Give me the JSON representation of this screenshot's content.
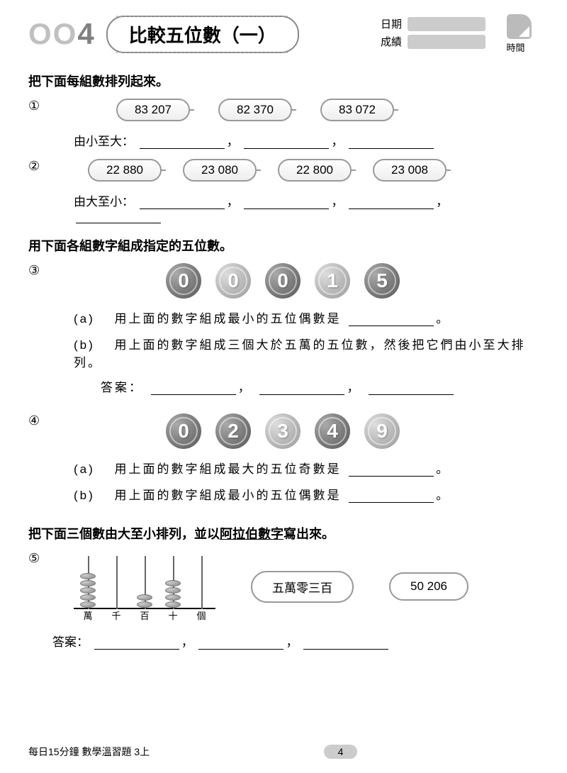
{
  "header": {
    "page_num_prefix": "OO",
    "page_num_last": "4",
    "title": "比較五位數（一）",
    "date_label": "日期",
    "score_label": "成績",
    "time_label": "時間"
  },
  "section1": {
    "instruction": "把下面每組數排列起來。",
    "q1": {
      "num": "①",
      "pills": [
        "83 207",
        "82 370",
        "83 072"
      ],
      "label": "由小至大："
    },
    "q2": {
      "num": "②",
      "pills": [
        "22 880",
        "23 080",
        "22 800",
        "23 008"
      ],
      "label": "由大至小："
    }
  },
  "section2": {
    "instruction": "用下面各組數字組成指定的五位數。",
    "q3": {
      "num": "③",
      "coins": [
        {
          "digit": "0",
          "shade": "dark"
        },
        {
          "digit": "0",
          "shade": "light"
        },
        {
          "digit": "0",
          "shade": "dark"
        },
        {
          "digit": "1",
          "shade": "light"
        },
        {
          "digit": "5",
          "shade": "dark"
        }
      ],
      "a_label": "(a)",
      "a_text": "用上面的數字組成最小的五位偶數是",
      "b_label": "(b)",
      "b_text": "用上面的數字組成三個大於五萬的五位數，然後把它們由小至大排列。",
      "b_ans": "答案："
    },
    "q4": {
      "num": "④",
      "coins": [
        {
          "digit": "0",
          "shade": "dark"
        },
        {
          "digit": "2",
          "shade": "dark"
        },
        {
          "digit": "3",
          "shade": "light"
        },
        {
          "digit": "4",
          "shade": "dark"
        },
        {
          "digit": "9",
          "shade": "light"
        }
      ],
      "a_label": "(a)",
      "a_text": "用上面的數字組成最大的五位奇數是",
      "b_label": "(b)",
      "b_text": "用上面的數字組成最小的五位偶數是"
    }
  },
  "section3": {
    "instruction_pre": "把下面三個數由大至小排列，並以",
    "instruction_u": "阿拉伯數字",
    "instruction_post": "寫出來。",
    "q5": {
      "num": "⑤",
      "abacus_labels": [
        "萬",
        "千",
        "百",
        "十",
        "個"
      ],
      "abacus_beads": [
        5,
        0,
        2,
        4,
        0
      ],
      "text1": "五萬零三百",
      "text2": "50 206",
      "ans": "答案："
    }
  },
  "footer": {
    "text": "每日15分鐘 數學溫習題 3上",
    "page": "4"
  }
}
